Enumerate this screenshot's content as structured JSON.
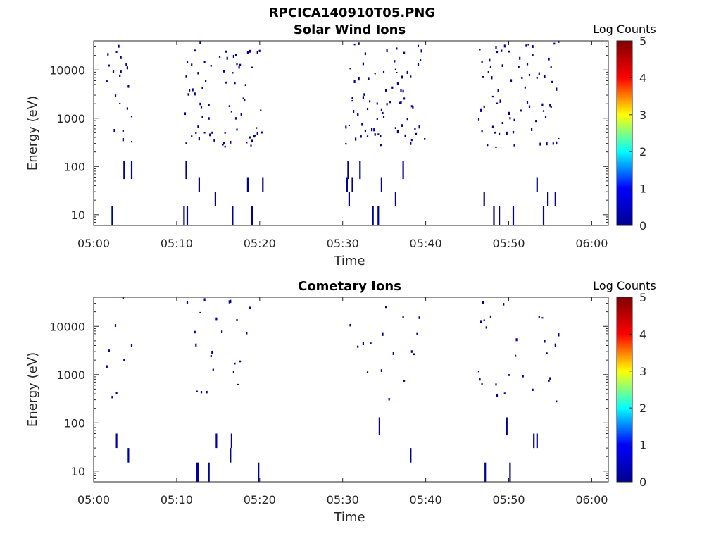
{
  "figure": {
    "title": "RPCICA140910T05.PNG"
  },
  "colormap": {
    "name": "jet",
    "stops": [
      "#00008f",
      "#0000ff",
      "#00ffff",
      "#ffff00",
      "#ff0000",
      "#800000"
    ]
  },
  "chart_data": [
    {
      "type": "heatmap",
      "title": "Solar Wind Ions",
      "xlabel": "Time",
      "ylabel": "Energy (eV)",
      "x_ticks": [
        "05:00",
        "05:10",
        "05:20",
        "05:30",
        "05:40",
        "05:50",
        "06:00"
      ],
      "x_range_min": [
        0,
        62
      ],
      "y_scale": "log",
      "y_ticks": [
        "10",
        "100",
        "1000",
        "10000"
      ],
      "y_range": [
        6,
        40000
      ],
      "colorbar": {
        "label": "Log Counts",
        "range": [
          0,
          5
        ],
        "ticks": [
          "0",
          "1",
          "2",
          "3",
          "4",
          "5"
        ]
      },
      "bursts_min": [
        [
          1.5,
          4.5
        ],
        [
          10.8,
          20.3
        ],
        [
          30.3,
          39.8
        ],
        [
          46.3,
          56.0
        ]
      ],
      "cell_value": 0.1
    },
    {
      "type": "heatmap",
      "title": "Cometary Ions",
      "xlabel": "Time",
      "ylabel": "Energy (eV)",
      "x_ticks": [
        "05:00",
        "05:10",
        "05:20",
        "05:30",
        "05:40",
        "05:50",
        "06:00"
      ],
      "x_range_min": [
        0,
        62
      ],
      "y_scale": "log",
      "y_ticks": [
        "10",
        "100",
        "1000",
        "10000"
      ],
      "y_range": [
        6,
        40000
      ],
      "colorbar": {
        "label": "Log Counts",
        "range": [
          0,
          5
        ],
        "ticks": [
          "0",
          "1",
          "2",
          "3",
          "4",
          "5"
        ]
      },
      "bursts_min": [
        [
          1.5,
          4.5
        ],
        [
          10.8,
          20.3
        ],
        [
          30.3,
          39.8
        ],
        [
          46.3,
          56.0
        ]
      ],
      "cell_value": 0.1
    }
  ]
}
